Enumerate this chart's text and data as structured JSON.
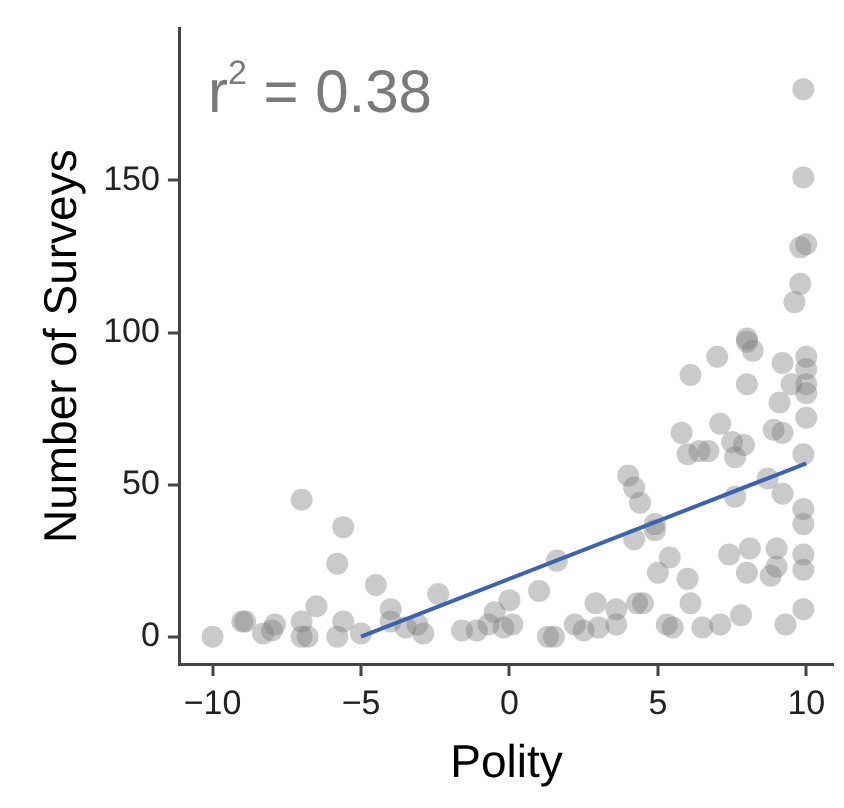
{
  "chart_data": {
    "type": "scatter",
    "xlabel": "Polity",
    "ylabel": "Number of Surveys",
    "annotations": [
      "r$^{2}$ = 0.38"
    ],
    "xlim": [
      -11.1,
      10.9
    ],
    "ylim": [
      -9,
      200
    ],
    "xticks": [
      {
        "value": -10,
        "label": "−10"
      },
      {
        "value": -5,
        "label": "−5"
      },
      0,
      5,
      10
    ],
    "yticks": [
      0,
      50,
      100,
      150
    ],
    "series": [
      {
        "marker": "circle",
        "color": "#7a7a7a",
        "x": [
          -10,
          -9,
          -8.9,
          -8.3,
          -7.9,
          -7,
          -7,
          -7,
          -6.8,
          -6.5,
          -5.6,
          -5.8,
          -5.6,
          -5.8,
          -5,
          -4.5,
          -4,
          -4,
          -3.1,
          -2.4,
          -2.9,
          -1.6,
          -1.1,
          -0.5,
          -0.2,
          -0.7,
          0.1,
          0,
          1,
          1.6,
          1.3,
          1.5,
          2.2,
          2.9,
          3.6,
          3.6,
          4.3,
          4.5,
          4,
          4.2,
          4.4,
          4.2,
          4.9,
          4.9,
          5.3,
          5.4,
          5,
          6,
          6.1,
          6.1,
          5.8,
          6,
          6.4,
          6.7,
          7,
          7.1,
          7.1,
          7.4,
          7.5,
          7.6,
          7.6,
          7.8,
          7.9,
          8,
          8.2,
          8,
          8,
          8,
          8.1,
          8.7,
          8.8,
          8.9,
          9,
          9,
          9.1,
          9.2,
          9.2,
          9.2,
          9.3,
          9.5,
          9.6,
          9.8,
          9.8,
          10,
          9.9,
          9.9,
          10,
          10,
          10,
          10,
          10,
          9.9,
          9.9,
          9.9,
          9.9,
          9.9,
          9.9,
          5.5,
          6.5,
          3,
          -3.5,
          -8,
          2.5
        ],
        "values": [
          0,
          5,
          5,
          1,
          4,
          45,
          5,
          0,
          0,
          10,
          36,
          24,
          5,
          0,
          1,
          17,
          9,
          5,
          4,
          14,
          1,
          2,
          2,
          8,
          3,
          4,
          4,
          12,
          15,
          25,
          0,
          0,
          4,
          11,
          9,
          4,
          11,
          11,
          53,
          49,
          44,
          32,
          37,
          35,
          4,
          26,
          21,
          19,
          11,
          86,
          67,
          60,
          61,
          61,
          92,
          70,
          4,
          27,
          64,
          59,
          46,
          7,
          63,
          97,
          94,
          83,
          98,
          21,
          29,
          52,
          20,
          68,
          29,
          23,
          77,
          90,
          67,
          47,
          4,
          83,
          110,
          116,
          128,
          129,
          151,
          180,
          92,
          88,
          83,
          80,
          72,
          60,
          42,
          37,
          27,
          22,
          9,
          3,
          3,
          3,
          3,
          2,
          2
        ]
      },
      {
        "type": "line",
        "marker": "none",
        "color": "#3a63b3",
        "x": [
          -5,
          10
        ],
        "values": [
          0,
          57
        ]
      }
    ]
  }
}
